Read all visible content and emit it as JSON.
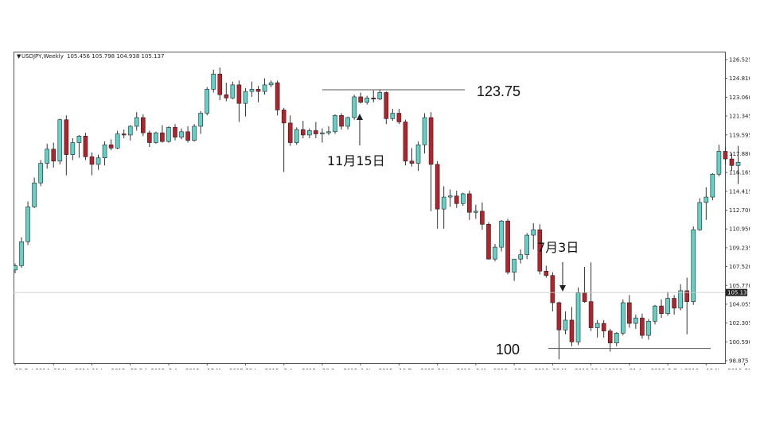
{
  "header": {
    "symbol": "USDJPY,Weekly",
    "ohlc": "105.456 105.798 104.938 105.137"
  },
  "chart_data": {
    "type": "candlestick",
    "ylim": [
      98.875,
      126.525
    ],
    "y_ticks": [
      "126.525",
      "124.810",
      "123.060",
      "121.345",
      "119.595",
      "117.880",
      "116.165",
      "114.415",
      "112.700",
      "110.950",
      "109.235",
      "107.520",
      "105.770",
      "104.055",
      "102.305",
      "100.590",
      "98.875"
    ],
    "x_ticks": [
      "19 Oct 2014",
      "30 Nov 2014",
      "11 Jan 2015",
      "22 Feb 2015",
      "5 Apr 2015",
      "17 May 2015",
      "28 Jun 2015",
      "9 Aug 2015",
      "20 Sep 2015",
      "1 Nov 2015",
      "13 Dec 2015",
      "24 Jan 2016",
      "6 Mar 2016",
      "17 Apr 2016",
      "29 May 2016",
      "10 Jul 2016",
      "21 Aug 2016",
      "2 Oct 2016",
      "13 Nov 2016",
      "25 Dec 2016"
    ],
    "current_price": "105.137",
    "current_value": 105.137,
    "candles": [
      [
        107.2,
        107.8,
        106.9,
        107.6
      ],
      [
        107.6,
        110.2,
        107.4,
        109.8
      ],
      [
        109.8,
        113.5,
        109.5,
        113.0
      ],
      [
        113.0,
        115.7,
        112.9,
        115.2
      ],
      [
        115.2,
        117.3,
        114.9,
        117.0
      ],
      [
        117.0,
        118.8,
        116.5,
        118.3
      ],
      [
        118.3,
        118.9,
        116.6,
        117.2
      ],
      [
        117.2,
        121.1,
        116.9,
        121.0
      ],
      [
        121.0,
        121.4,
        115.9,
        117.8
      ],
      [
        117.8,
        119.3,
        117.3,
        118.9
      ],
      [
        118.9,
        119.6,
        117.5,
        119.5
      ],
      [
        119.5,
        119.8,
        117.3,
        117.6
      ],
      [
        117.6,
        118.0,
        115.9,
        116.9
      ],
      [
        116.9,
        117.8,
        116.4,
        117.5
      ],
      [
        117.5,
        119.0,
        116.8,
        118.7
      ],
      [
        118.7,
        119.2,
        118.2,
        118.4
      ],
      [
        118.4,
        120.0,
        118.3,
        119.7
      ],
      [
        119.7,
        120.1,
        119.3,
        119.6
      ],
      [
        119.6,
        120.5,
        119.1,
        120.4
      ],
      [
        120.4,
        121.7,
        120.0,
        121.2
      ],
      [
        121.2,
        121.5,
        119.5,
        119.8
      ],
      [
        119.8,
        120.0,
        118.5,
        118.9
      ],
      [
        118.9,
        119.9,
        118.8,
        119.8
      ],
      [
        119.8,
        120.5,
        118.9,
        119.0
      ],
      [
        119.0,
        120.4,
        118.9,
        120.3
      ],
      [
        120.3,
        120.6,
        119.1,
        119.4
      ],
      [
        119.4,
        120.2,
        119.2,
        119.9
      ],
      [
        119.9,
        120.4,
        118.9,
        119.1
      ],
      [
        119.1,
        120.6,
        119.0,
        120.4
      ],
      [
        120.4,
        121.8,
        119.7,
        121.6
      ],
      [
        121.6,
        124.0,
        121.4,
        123.8
      ],
      [
        123.8,
        125.6,
        123.5,
        125.2
      ],
      [
        125.2,
        125.8,
        122.8,
        123.3
      ],
      [
        123.3,
        124.4,
        122.7,
        123.0
      ],
      [
        123.0,
        124.5,
        122.9,
        124.2
      ],
      [
        124.2,
        124.6,
        120.8,
        122.5
      ],
      [
        122.5,
        123.9,
        121.3,
        123.6
      ],
      [
        123.6,
        124.5,
        123.1,
        123.8
      ],
      [
        123.8,
        124.1,
        122.6,
        123.6
      ],
      [
        123.6,
        124.8,
        123.3,
        124.2
      ],
      [
        124.2,
        124.6,
        124.0,
        124.4
      ],
      [
        124.4,
        124.6,
        121.4,
        121.9
      ],
      [
        121.9,
        122.1,
        116.2,
        120.7
      ],
      [
        120.7,
        121.4,
        118.6,
        118.9
      ],
      [
        118.9,
        120.3,
        118.7,
        120.1
      ],
      [
        120.1,
        120.9,
        119.3,
        119.6
      ],
      [
        119.6,
        120.2,
        119.3,
        120.0
      ],
      [
        120.0,
        120.8,
        119.3,
        119.7
      ],
      [
        119.7,
        120.2,
        118.9,
        119.8
      ],
      [
        119.8,
        120.4,
        119.6,
        119.9
      ],
      [
        119.9,
        121.5,
        119.7,
        121.4
      ],
      [
        121.4,
        121.6,
        120.1,
        120.4
      ],
      [
        120.4,
        121.3,
        120.1,
        121.2
      ],
      [
        121.2,
        123.3,
        121.0,
        123.1
      ],
      [
        123.1,
        123.5,
        122.5,
        122.6
      ],
      [
        122.6,
        123.2,
        122.4,
        123.0
      ],
      [
        123.0,
        123.7,
        122.6,
        122.9
      ],
      [
        122.9,
        123.8,
        122.8,
        123.5
      ],
      [
        123.5,
        123.6,
        120.6,
        121.1
      ],
      [
        121.1,
        122.0,
        120.9,
        121.6
      ],
      [
        121.6,
        122.0,
        120.6,
        120.8
      ],
      [
        120.8,
        121.0,
        116.8,
        117.2
      ],
      [
        117.2,
        118.4,
        116.7,
        117.0
      ],
      [
        117.0,
        119.0,
        116.3,
        118.7
      ],
      [
        118.7,
        121.6,
        117.9,
        121.2
      ],
      [
        121.2,
        121.7,
        112.6,
        116.9
      ],
      [
        116.9,
        117.2,
        111.0,
        112.8
      ],
      [
        112.8,
        114.9,
        111.0,
        113.9
      ],
      [
        113.9,
        114.6,
        113.0,
        114.0
      ],
      [
        114.0,
        114.5,
        112.9,
        113.3
      ],
      [
        113.3,
        114.3,
        113.1,
        114.2
      ],
      [
        114.2,
        114.5,
        111.8,
        112.5
      ],
      [
        112.5,
        113.2,
        111.9,
        112.6
      ],
      [
        112.6,
        113.4,
        110.9,
        111.4
      ],
      [
        111.4,
        111.6,
        108.2,
        108.2
      ],
      [
        108.2,
        109.6,
        108.0,
        109.3
      ],
      [
        109.3,
        111.8,
        108.9,
        111.7
      ],
      [
        111.7,
        111.9,
        106.8,
        107.0
      ],
      [
        107.0,
        108.2,
        106.2,
        108.2
      ],
      [
        108.2,
        109.1,
        107.8,
        108.6
      ],
      [
        108.6,
        110.6,
        108.2,
        110.4
      ],
      [
        110.4,
        111.5,
        109.1,
        110.9
      ],
      [
        110.9,
        111.4,
        106.8,
        107.1
      ],
      [
        107.1,
        107.6,
        106.5,
        106.7
      ],
      [
        106.7,
        107.0,
        103.4,
        104.2
      ],
      [
        104.2,
        104.3,
        99.0,
        101.7
      ],
      [
        101.7,
        103.4,
        101.3,
        102.6
      ],
      [
        102.6,
        103.8,
        100.2,
        100.6
      ],
      [
        100.6,
        105.6,
        100.3,
        105.1
      ],
      [
        105.1,
        107.5,
        104.2,
        104.3
      ],
      [
        104.3,
        107.9,
        101.6,
        101.9
      ],
      [
        101.9,
        102.6,
        101.0,
        102.3
      ],
      [
        102.3,
        102.6,
        101.0,
        101.6
      ],
      [
        101.6,
        101.8,
        99.7,
        100.5
      ],
      [
        100.5,
        101.5,
        100.2,
        101.4
      ],
      [
        101.4,
        104.5,
        101.2,
        104.2
      ],
      [
        104.2,
        104.9,
        101.9,
        102.3
      ],
      [
        102.3,
        103.1,
        101.8,
        102.8
      ],
      [
        102.8,
        103.2,
        100.9,
        101.2
      ],
      [
        101.2,
        102.7,
        100.8,
        102.5
      ],
      [
        102.5,
        104.0,
        102.2,
        103.9
      ],
      [
        103.9,
        104.5,
        102.8,
        103.2
      ],
      [
        103.2,
        105.2,
        103.0,
        104.6
      ],
      [
        104.6,
        104.9,
        103.1,
        103.7
      ],
      [
        103.7,
        105.9,
        103.5,
        105.3
      ],
      [
        105.3,
        106.5,
        101.3,
        104.3
      ],
      [
        104.3,
        111.2,
        104.0,
        110.9
      ],
      [
        110.9,
        113.8,
        110.8,
        113.4
      ],
      [
        113.4,
        114.8,
        111.8,
        113.9
      ],
      [
        113.9,
        116.1,
        113.6,
        116.0
      ],
      [
        116.0,
        118.7,
        115.8,
        118.1
      ],
      [
        118.1,
        118.5,
        116.9,
        117.4
      ],
      [
        117.4,
        117.9,
        116.3,
        116.8
      ],
      [
        116.8,
        118.6,
        115.1,
        117.1
      ]
    ]
  },
  "annotations": {
    "label_high": "123.75",
    "label_low": "100",
    "label_nov": "11月15日",
    "label_jul": "7月3日",
    "value_high": 123.75,
    "value_low": 100.0
  },
  "colors": {
    "up": "#5fd3c8",
    "down": "#b5222c",
    "wick": "#333333",
    "grid_line": "#cccccc"
  }
}
